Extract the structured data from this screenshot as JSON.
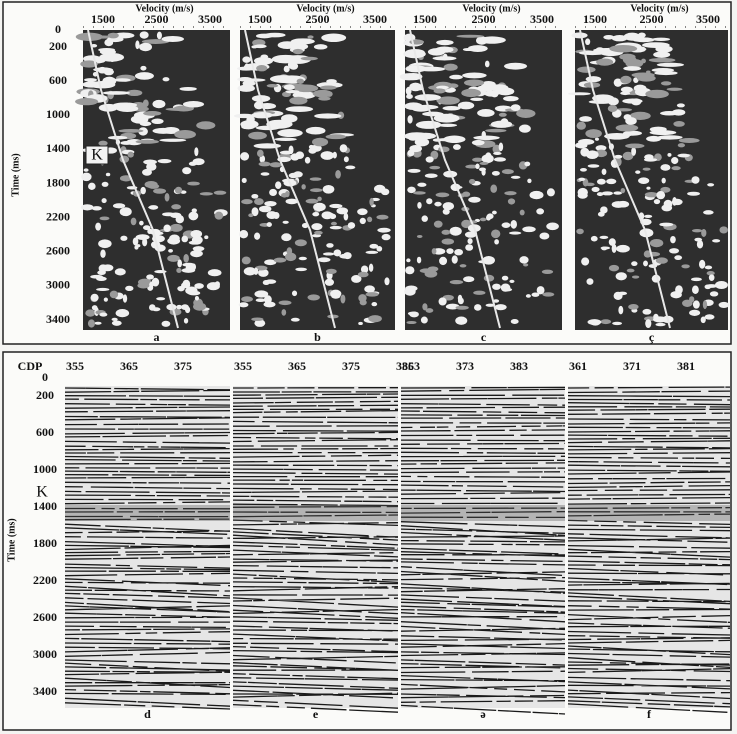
{
  "top": {
    "y_label": "Time (ms)",
    "marker": "K",
    "time_ticks": [
      "0",
      "200",
      "600",
      "1000",
      "1400",
      "1800",
      "2200",
      "2600",
      "3000",
      "3400"
    ],
    "panels": [
      {
        "title": "Velocity (m/s)",
        "ticks": [
          "1500",
          "2500",
          "3500"
        ],
        "label": "a"
      },
      {
        "title": "Velocity (m/s)",
        "ticks": [
          "1500",
          "2500",
          "3500"
        ],
        "label": "b"
      },
      {
        "title": "Velocity (m/s)",
        "ticks": [
          "1500",
          "2500",
          "3500"
        ],
        "label": "c"
      },
      {
        "title": "Velocity (m/s)",
        "ticks": [
          "1500",
          "2500",
          "3500"
        ],
        "label": "ç"
      }
    ]
  },
  "bottom": {
    "y_label": "Time (ms)",
    "marker": "K",
    "cdp_label": "CDP",
    "time_ticks": [
      "0",
      "200",
      "600",
      "1000",
      "1400",
      "1800",
      "2200",
      "2600",
      "3000",
      "3400"
    ],
    "panels": [
      {
        "cdps": [
          "355",
          "365",
          "375"
        ],
        "label": "d"
      },
      {
        "cdps": [
          "355",
          "365",
          "375",
          "385"
        ],
        "label": "e"
      },
      {
        "cdps": [
          "363",
          "373",
          "383"
        ],
        "label": "ə"
      },
      {
        "cdps": [
          "361",
          "371",
          "381"
        ],
        "label": "f"
      }
    ]
  }
}
